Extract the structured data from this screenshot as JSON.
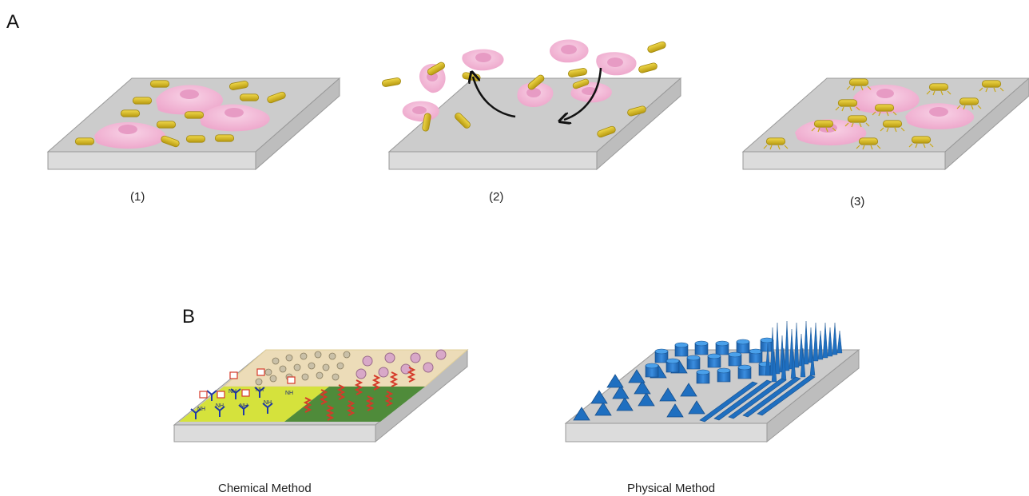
{
  "panel_a": {
    "letter": "A",
    "step_labels": [
      "(1)",
      "(2)",
      "(3)"
    ]
  },
  "panel_b": {
    "letter": "B",
    "chemical_label": "Chemical Method",
    "physical_label": "Physical Method",
    "amine_label": "NH"
  },
  "colors": {
    "substrate_top": "#cccccc",
    "substrate_side": "#dddddd",
    "cell": "#f2b5d4",
    "cell_nucleus": "#e79bc4",
    "bacterium": "#d8b820",
    "bacterium_outline": "#a38a10",
    "chem_yellow": "#d5e23c",
    "chem_green": "#4f8b3a",
    "chem_tan": "#ecdcb8",
    "helix": "#d53a2a",
    "antibody": "#1f3aa8",
    "structure_blue": "#1f6fc0",
    "arrow": "#111111"
  }
}
